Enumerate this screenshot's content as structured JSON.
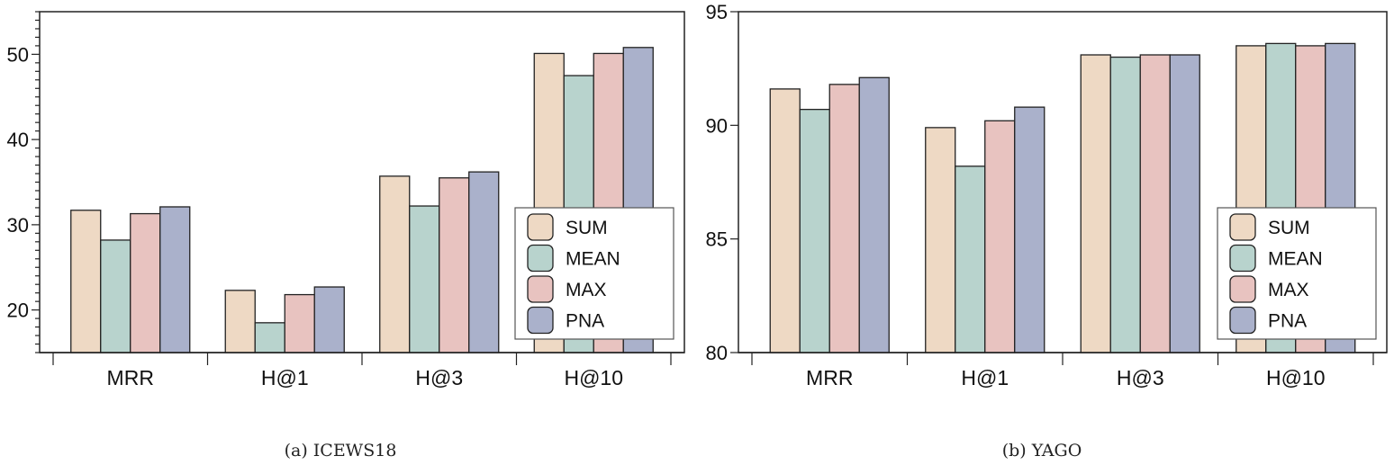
{
  "series_colors": [
    "#eed9c4",
    "#b8d3cd",
    "#e8c3c0",
    "#aab1cb"
  ],
  "chart_data": [
    {
      "type": "bar",
      "caption": "(a)  ICEWS18",
      "categories": [
        "MRR",
        "H@1",
        "H@3",
        "H@10"
      ],
      "ylim": [
        15,
        55
      ],
      "yticks": [
        20,
        30,
        40,
        50
      ],
      "legend_position": "lower-right",
      "series": [
        {
          "name": "SUM",
          "values": [
            31.7,
            22.3,
            35.7,
            50.1
          ]
        },
        {
          "name": "MEAN",
          "values": [
            28.2,
            18.5,
            32.2,
            47.5
          ]
        },
        {
          "name": "MAX",
          "values": [
            31.3,
            21.8,
            35.5,
            50.1
          ]
        },
        {
          "name": "PNA",
          "values": [
            32.1,
            22.7,
            36.2,
            50.8
          ]
        }
      ]
    },
    {
      "type": "bar",
      "caption": "(b)  YAGO",
      "categories": [
        "MRR",
        "H@1",
        "H@3",
        "H@10"
      ],
      "ylim": [
        80,
        95
      ],
      "yticks": [
        80,
        85,
        90,
        95
      ],
      "legend_position": "lower-right",
      "series": [
        {
          "name": "SUM",
          "values": [
            91.6,
            89.9,
            93.1,
            93.5
          ]
        },
        {
          "name": "MEAN",
          "values": [
            90.7,
            88.2,
            93.0,
            93.6
          ]
        },
        {
          "name": "MAX",
          "values": [
            91.8,
            90.2,
            93.1,
            93.5
          ]
        },
        {
          "name": "PNA",
          "values": [
            92.1,
            90.8,
            93.1,
            93.6
          ]
        }
      ]
    }
  ]
}
